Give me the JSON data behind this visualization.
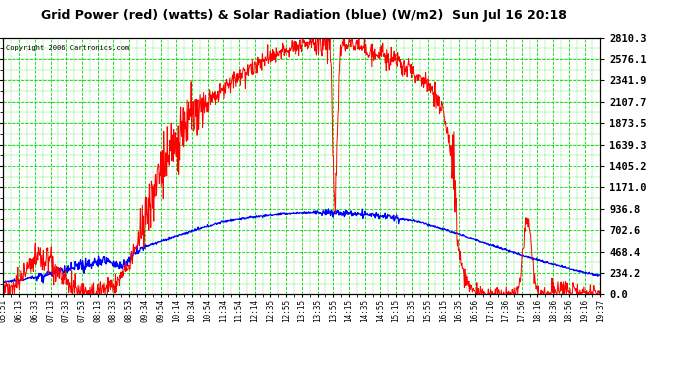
{
  "title": "Grid Power (red) (watts) & Solar Radiation (blue) (W/m2)  Sun Jul 16 20:18",
  "copyright": "Copyright 2006 Cartronics.com",
  "bg_color": "#ffffff",
  "plot_bg_color": "#ffffff",
  "grid_color": "#00dd00",
  "line1_color": "#ff0000",
  "line2_color": "#0000ff",
  "title_color": "#000000",
  "ymin": 0.0,
  "ymax": 2810.3,
  "yticks": [
    0.0,
    234.2,
    468.4,
    702.6,
    936.8,
    1171.0,
    1405.2,
    1639.3,
    1873.5,
    2107.7,
    2341.9,
    2576.1,
    2810.3
  ],
  "xtick_labels": [
    "05:51",
    "06:13",
    "06:33",
    "07:13",
    "07:33",
    "07:53",
    "08:13",
    "08:33",
    "08:53",
    "09:34",
    "09:54",
    "10:14",
    "10:34",
    "10:54",
    "11:34",
    "11:54",
    "12:14",
    "12:35",
    "12:55",
    "13:15",
    "13:35",
    "13:55",
    "14:15",
    "14:35",
    "14:55",
    "15:15",
    "15:35",
    "15:55",
    "16:15",
    "16:35",
    "16:56",
    "17:16",
    "17:36",
    "17:56",
    "18:16",
    "18:36",
    "18:56",
    "19:16",
    "19:37"
  ]
}
